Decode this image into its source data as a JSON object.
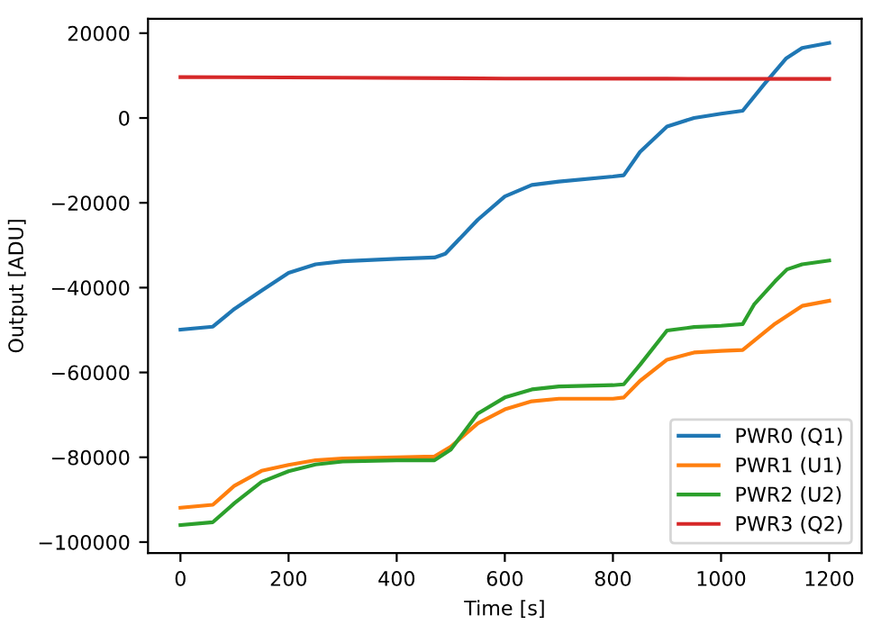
{
  "chart_data": {
    "type": "line",
    "xlabel": "Time [s]",
    "ylabel": "Output [ADU]",
    "xlim": [
      -60,
      1260
    ],
    "ylim": [
      -102600,
      23400
    ],
    "xticks": [
      0,
      200,
      400,
      600,
      800,
      1000,
      1200
    ],
    "yticks": [
      -100000,
      -80000,
      -60000,
      -40000,
      -20000,
      0,
      20000
    ],
    "grid": false,
    "legend": "lower right",
    "marker": "none",
    "line_style": "solid",
    "series": [
      {
        "name": "PWR0 (Q1)",
        "color": "#1f77b4",
        "x": [
          0,
          60,
          100,
          150,
          200,
          250,
          300,
          400,
          470,
          490,
          550,
          600,
          650,
          700,
          800,
          820,
          850,
          900,
          950,
          1000,
          1040,
          1080,
          1120,
          1150,
          1200
        ],
        "values": [
          -49900,
          -49200,
          -45000,
          -40700,
          -36500,
          -34500,
          -33800,
          -33200,
          -32900,
          -32000,
          -24000,
          -18500,
          -15800,
          -15000,
          -13800,
          -13500,
          -8000,
          -2000,
          0,
          1000,
          1700,
          8000,
          14000,
          16500,
          17700
        ]
      },
      {
        "name": "PWR1 (U1)",
        "color": "#ff7f0e",
        "x": [
          0,
          60,
          100,
          150,
          200,
          250,
          300,
          400,
          470,
          500,
          550,
          600,
          650,
          700,
          800,
          820,
          850,
          900,
          950,
          1000,
          1040,
          1100,
          1150,
          1200
        ],
        "values": [
          -91900,
          -91200,
          -86700,
          -83200,
          -81800,
          -80700,
          -80300,
          -80000,
          -79800,
          -77500,
          -72000,
          -68700,
          -66800,
          -66200,
          -66200,
          -65900,
          -62000,
          -57000,
          -55300,
          -54900,
          -54700,
          -48500,
          -44300,
          -43100
        ]
      },
      {
        "name": "PWR2 (U2)",
        "color": "#2ca02c",
        "x": [
          0,
          60,
          100,
          150,
          200,
          250,
          300,
          400,
          470,
          500,
          550,
          600,
          650,
          700,
          800,
          820,
          850,
          900,
          950,
          1000,
          1040,
          1061,
          1100,
          1122,
          1150,
          1200
        ],
        "values": [
          -96000,
          -95300,
          -90800,
          -85800,
          -83300,
          -81700,
          -81000,
          -80700,
          -80700,
          -78200,
          -69700,
          -65900,
          -64000,
          -63300,
          -63000,
          -62800,
          -58200,
          -50100,
          -49300,
          -49000,
          -48600,
          -44000,
          -38500,
          -35700,
          -34500,
          -33600
        ]
      },
      {
        "name": "PWR3 (Q2)",
        "color": "#d62728",
        "x": [
          0,
          300,
          600,
          900,
          1200
        ],
        "values": [
          9650,
          9500,
          9300,
          9250,
          9200
        ]
      }
    ]
  }
}
